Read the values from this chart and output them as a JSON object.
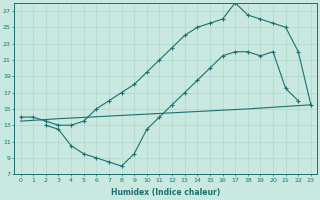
{
  "bg_color": "#c8e8e0",
  "grid_color": "#b0d8d0",
  "line_color": "#1a7070",
  "xlabel": "Humidex (Indice chaleur)",
  "xlim": [
    -0.5,
    23.5
  ],
  "ylim": [
    7,
    28
  ],
  "yticks": [
    7,
    9,
    11,
    13,
    15,
    17,
    19,
    21,
    23,
    25,
    27
  ],
  "xticks": [
    0,
    1,
    2,
    3,
    4,
    5,
    6,
    7,
    8,
    9,
    10,
    11,
    12,
    13,
    14,
    15,
    16,
    17,
    18,
    19,
    20,
    21,
    22,
    23
  ],
  "line1_x": [
    0,
    1,
    2,
    3,
    4,
    5,
    6,
    7,
    8,
    9,
    10,
    11,
    12,
    13,
    14,
    15,
    16,
    17,
    18,
    19,
    20,
    21,
    22,
    23
  ],
  "line1_y": [
    14,
    14,
    13.5,
    13,
    13,
    13.5,
    15,
    16,
    17,
    18,
    19.5,
    21,
    22.5,
    24,
    25,
    25.5,
    26,
    28,
    26.5,
    26,
    25.5,
    25,
    22,
    15.5
  ],
  "line2_x": [
    0,
    3,
    8,
    13,
    18,
    23
  ],
  "line2_y": [
    13.5,
    13.8,
    14.2,
    14.6,
    15.0,
    15.5
  ],
  "line3_x": [
    2,
    3,
    4,
    5,
    6,
    7,
    8,
    9,
    10,
    11,
    12,
    13,
    14,
    15,
    16,
    17,
    18,
    19,
    20,
    21,
    22
  ],
  "line3_y": [
    13,
    12.5,
    10.5,
    9.5,
    9,
    8.5,
    8,
    9.5,
    12.5,
    14,
    15.5,
    17,
    18.5,
    20,
    21.5,
    22,
    22,
    21.5,
    22,
    17.5,
    16
  ]
}
